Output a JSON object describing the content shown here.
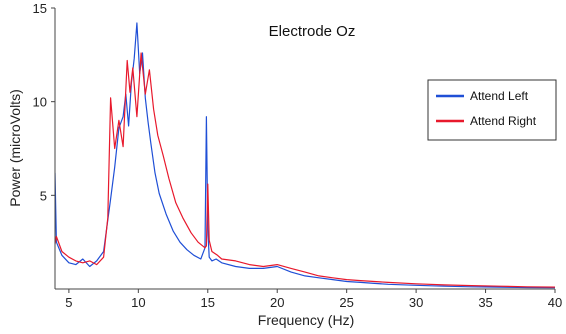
{
  "chart_data": {
    "type": "line",
    "title": "Electrode Oz",
    "xlabel": "Frequency (Hz)",
    "ylabel": "Power (microVolts)",
    "xlim": [
      4,
      40
    ],
    "ylim": [
      0,
      15
    ],
    "xticks": [
      5,
      10,
      15,
      20,
      25,
      30,
      35,
      40
    ],
    "yticks": [
      5,
      10,
      15
    ],
    "grid": false,
    "legend_position": "right",
    "series": [
      {
        "name": "Attend Left",
        "color": "#1f4fd6",
        "x": [
          4,
          4.1,
          4.5,
          5,
          5.5,
          6,
          6.5,
          7,
          7.5,
          8,
          8.3,
          8.6,
          8.9,
          9.1,
          9.3,
          9.5,
          9.7,
          9.9,
          10.1,
          10.3,
          10.5,
          10.7,
          10.9,
          11.2,
          11.5,
          12,
          12.5,
          13,
          13.5,
          14,
          14.5,
          14.8,
          14.9,
          15.0,
          15.1,
          15.3,
          15.6,
          16,
          17,
          18,
          19,
          20,
          21,
          22,
          23,
          24,
          25,
          26,
          27,
          28,
          30,
          32,
          34,
          36,
          38,
          40
        ],
        "y": [
          6.2,
          2.5,
          1.8,
          1.4,
          1.3,
          1.6,
          1.2,
          1.5,
          2.0,
          4.8,
          6.5,
          8.6,
          9.2,
          10.4,
          8.7,
          11.0,
          12.3,
          14.2,
          11.5,
          12.6,
          10.2,
          8.9,
          7.8,
          6.2,
          5.1,
          4.0,
          3.1,
          2.5,
          2.1,
          1.8,
          1.6,
          2.2,
          9.2,
          3.2,
          1.7,
          1.5,
          1.6,
          1.4,
          1.2,
          1.1,
          1.1,
          1.2,
          0.9,
          0.7,
          0.6,
          0.5,
          0.4,
          0.35,
          0.3,
          0.25,
          0.2,
          0.15,
          0.12,
          0.1,
          0.08,
          0.07
        ]
      },
      {
        "name": "Attend Right",
        "color": "#e8192c",
        "x": [
          4,
          4.1,
          4.5,
          5,
          5.5,
          6,
          6.5,
          7,
          7.5,
          7.8,
          8.0,
          8.3,
          8.6,
          8.9,
          9.2,
          9.4,
          9.6,
          9.9,
          10.2,
          10.5,
          10.8,
          11.1,
          11.4,
          11.8,
          12.2,
          12.7,
          13.2,
          13.8,
          14.3,
          14.8,
          14.9,
          15.0,
          15.1,
          15.3,
          15.7,
          16,
          17,
          18,
          19,
          20,
          21,
          22,
          23,
          24,
          25,
          26,
          27,
          28,
          30,
          32,
          34,
          36,
          38,
          40
        ],
        "y": [
          2.4,
          2.8,
          2.0,
          1.7,
          1.5,
          1.4,
          1.5,
          1.3,
          1.7,
          3.8,
          10.2,
          7.5,
          9.0,
          7.6,
          12.2,
          10.5,
          11.8,
          9.2,
          12.6,
          10.4,
          11.7,
          9.6,
          8.2,
          7.1,
          5.9,
          4.6,
          3.8,
          3.0,
          2.5,
          2.2,
          2.3,
          5.6,
          2.6,
          2.0,
          1.8,
          1.6,
          1.5,
          1.3,
          1.2,
          1.3,
          1.1,
          0.9,
          0.7,
          0.6,
          0.5,
          0.45,
          0.4,
          0.35,
          0.28,
          0.22,
          0.18,
          0.15,
          0.12,
          0.1
        ]
      }
    ]
  }
}
